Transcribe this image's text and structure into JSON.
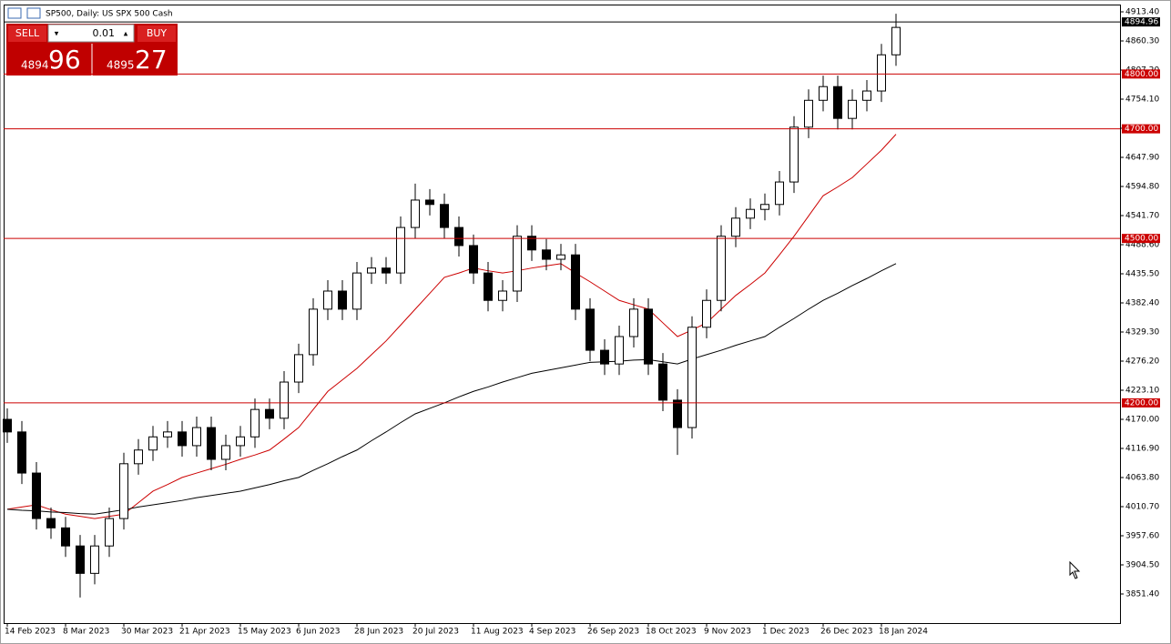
{
  "header": {
    "title": "SP500, Daily:  US SPX 500 Cash"
  },
  "trade_panel": {
    "sell": "SELL",
    "buy": "BUY",
    "lot": "0.01",
    "bid_main": "4894",
    "bid_pips": "96",
    "ask_main": "4895",
    "ask_pips": "27"
  },
  "chart_data": {
    "type": "candlestick",
    "candle_color": "#000000",
    "xlim": [
      -0.25,
      76.375
    ],
    "ylim": [
      3798.3,
      4926.7
    ],
    "xticks": [
      {
        "value": 0,
        "label": "14 Feb 2023"
      },
      {
        "value": 4,
        "label": "8 Mar 2023"
      },
      {
        "value": 8,
        "label": "30 Mar 2023"
      },
      {
        "value": 12,
        "label": "21 Apr 2023"
      },
      {
        "value": 16,
        "label": "15 May 2023"
      },
      {
        "value": 20,
        "label": "6 Jun 2023"
      },
      {
        "value": 24,
        "label": "28 Jun 2023"
      },
      {
        "value": 28,
        "label": "20 Jul 2023"
      },
      {
        "value": 32,
        "label": "11 Aug 2023"
      },
      {
        "value": 36,
        "label": "4 Sep 2023"
      },
      {
        "value": 40,
        "label": "26 Sep 2023"
      },
      {
        "value": 44,
        "label": "18 Oct 2023"
      },
      {
        "value": 48,
        "label": "9 Nov 2023"
      },
      {
        "value": 52,
        "label": "1 Dec 2023"
      },
      {
        "value": 56,
        "label": "26 Dec 2023"
      },
      {
        "value": 60,
        "label": "18 Jan 2024"
      }
    ],
    "yticks": [
      {
        "value": 4913.4,
        "label": "4913.40"
      },
      {
        "value": 4860.3,
        "label": "4860.30"
      },
      {
        "value": 4807.2,
        "label": "4807.20"
      },
      {
        "value": 4754.1,
        "label": "4754.10"
      },
      {
        "value": 4701.0,
        "label": "4701.00"
      },
      {
        "value": 4647.9,
        "label": "4647.90"
      },
      {
        "value": 4594.8,
        "label": "4594.80"
      },
      {
        "value": 4541.7,
        "label": "4541.70"
      },
      {
        "value": 4488.6,
        "label": "4488.60"
      },
      {
        "value": 4435.5,
        "label": "4435.50"
      },
      {
        "value": 4382.4,
        "label": "4382.40"
      },
      {
        "value": 4329.3,
        "label": "4329.30"
      },
      {
        "value": 4276.2,
        "label": "4276.20"
      },
      {
        "value": 4223.1,
        "label": "4223.10"
      },
      {
        "value": 4170.0,
        "label": "4170.00"
      },
      {
        "value": 4116.9,
        "label": "4116.90"
      },
      {
        "value": 4063.8,
        "label": "4063.80"
      },
      {
        "value": 4010.7,
        "label": "4010.70"
      },
      {
        "value": 3957.6,
        "label": "3957.60"
      },
      {
        "value": 3904.5,
        "label": "3904.50"
      },
      {
        "value": 3851.4,
        "label": "3851.40"
      }
    ],
    "levels_color": "#cc0000",
    "levels": [
      {
        "value": 4800,
        "label": "4800.00"
      },
      {
        "value": 4700,
        "label": "4700.00"
      },
      {
        "value": 4500,
        "label": "4500.00"
      },
      {
        "value": 4200,
        "label": "4200.00"
      }
    ],
    "current_price": {
      "value": 4894.96,
      "label": "4894.96"
    },
    "open": [
      4170,
      4147,
      4072,
      3989,
      3972,
      3939,
      3889,
      3939,
      3989,
      4089,
      4114,
      4138,
      4147,
      4122,
      4155,
      4097,
      4122,
      4138,
      4188,
      4172,
      4238,
      4288,
      4371,
      4404,
      4371,
      4437,
      4446,
      4437,
      4520,
      4570,
      4562,
      4520,
      4487,
      4437,
      4387,
      4404,
      4504,
      4479,
      4462,
      4470,
      4371,
      4296,
      4271,
      4321,
      4371,
      4271,
      4205,
      4155,
      4338,
      4387,
      4504,
      4537,
      4553,
      4562,
      4603,
      4703,
      4752,
      4777,
      4719,
      4752,
      4769,
      4835
    ],
    "high": [
      4190,
      4167,
      4092,
      4009,
      3992,
      3959,
      3959,
      4009,
      4109,
      4134,
      4158,
      4167,
      4167,
      4175,
      4175,
      4142,
      4158,
      4208,
      4208,
      4258,
      4308,
      4391,
      4424,
      4424,
      4457,
      4466,
      4466,
      4540,
      4600,
      4590,
      4582,
      4540,
      4507,
      4457,
      4424,
      4524,
      4524,
      4499,
      4490,
      4490,
      4391,
      4316,
      4341,
      4391,
      4391,
      4291,
      4225,
      4358,
      4407,
      4524,
      4557,
      4573,
      4582,
      4623,
      4723,
      4772,
      4797,
      4797,
      4772,
      4789,
      4855,
      4910
    ],
    "low": [
      4127,
      4052,
      3969,
      3952,
      3919,
      3845,
      3869,
      3919,
      3969,
      4069,
      4094,
      4118,
      4102,
      4102,
      4077,
      4077,
      4102,
      4118,
      4152,
      4152,
      4218,
      4268,
      4351,
      4351,
      4351,
      4417,
      4417,
      4417,
      4500,
      4542,
      4500,
      4467,
      4417,
      4367,
      4367,
      4384,
      4459,
      4442,
      4442,
      4351,
      4276,
      4251,
      4251,
      4301,
      4251,
      4185,
      4105,
      4135,
      4318,
      4367,
      4484,
      4517,
      4533,
      4542,
      4583,
      4683,
      4732,
      4699,
      4699,
      4732,
      4749,
      4815
    ],
    "close": [
      4147,
      4072,
      3989,
      3972,
      3939,
      3889,
      3939,
      3989,
      4089,
      4114,
      4138,
      4147,
      4122,
      4155,
      4097,
      4122,
      4138,
      4188,
      4172,
      4238,
      4288,
      4371,
      4404,
      4371,
      4437,
      4446,
      4437,
      4520,
      4570,
      4562,
      4520,
      4487,
      4437,
      4387,
      4404,
      4504,
      4479,
      4462,
      4470,
      4371,
      4296,
      4271,
      4321,
      4371,
      4271,
      4205,
      4155,
      4338,
      4387,
      4504,
      4537,
      4553,
      4562,
      4603,
      4703,
      4752,
      4777,
      4719,
      4752,
      4769,
      4835,
      4885
    ],
    "series": [
      {
        "color": "#cc0000",
        "values": [
          4006,
          4010,
          4014,
          4005,
          3997,
          3993,
          3989,
          3993,
          3997,
          4018,
          4039,
          4051,
          4064,
          4072,
          4080,
          4088,
          4097,
          4105,
          4114,
          4134,
          4155,
          4188,
          4221,
          4242,
          4263,
          4288,
          4313,
          4342,
          4371,
          4400,
          4429,
          4437,
          4446,
          4441,
          4437,
          4441,
          4446,
          4450,
          4454,
          4437,
          4421,
          4404,
          4387,
          4379,
          4371,
          4346,
          4321,
          4333,
          4346,
          4371,
          4396,
          4416,
          4437,
          4470,
          4504,
          4541,
          4578,
          4594,
          4611,
          4636,
          4661,
          4690
        ]
      },
      {
        "color": "#000000",
        "values": [
          4006,
          4004,
          4003,
          4001,
          4000,
          3998,
          3997,
          4001,
          4005,
          4010,
          4014,
          4018,
          4022,
          4027,
          4031,
          4035,
          4039,
          4045,
          4051,
          4058,
          4064,
          4077,
          4089,
          4102,
          4114,
          4131,
          4147,
          4164,
          4180,
          4190,
          4200,
          4211,
          4221,
          4229,
          4238,
          4246,
          4254,
          4259,
          4264,
          4269,
          4274,
          4275,
          4276,
          4278,
          4279,
          4275,
          4271,
          4280,
          4288,
          4296,
          4305,
          4313,
          4321,
          4338,
          4354,
          4371,
          4387,
          4400,
          4414,
          4427,
          4441,
          4454
        ]
      }
    ]
  }
}
